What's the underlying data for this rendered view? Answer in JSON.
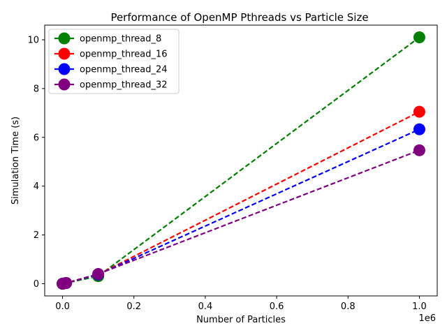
{
  "chart_data": {
    "type": "line",
    "title": "Performance of OpenMP Pthreads vs Particle Size",
    "xlabel": "Number of Particles",
    "ylabel": "Simulation Time (s)",
    "x_offset_label": "1e6",
    "x_scale": 1000000,
    "xlim": [
      -50000,
      1050000
    ],
    "ylim": [
      -0.5,
      10.6
    ],
    "xticks": [
      0,
      200000,
      400000,
      600000,
      800000,
      1000000
    ],
    "xtick_labels": [
      "0.0",
      "0.2",
      "0.4",
      "0.6",
      "0.8",
      "1.0"
    ],
    "yticks": [
      0,
      2,
      4,
      6,
      8,
      10
    ],
    "ytick_labels": [
      "0",
      "2",
      "4",
      "6",
      "8",
      "10"
    ],
    "grid": false,
    "legend_position": "upper-left",
    "x": [
      100,
      1000,
      10000,
      100000,
      1000000
    ],
    "series": [
      {
        "name": "openmp_thread_8",
        "color": "#008000",
        "values": [
          0.0,
          0.003,
          0.03,
          0.31,
          10.1
        ]
      },
      {
        "name": "openmp_thread_16",
        "color": "#ff0000",
        "values": [
          0.0,
          0.003,
          0.03,
          0.38,
          7.05
        ]
      },
      {
        "name": "openmp_thread_24",
        "color": "#0000ff",
        "values": [
          0.0,
          0.003,
          0.03,
          0.38,
          6.33
        ]
      },
      {
        "name": "openmp_thread_32",
        "color": "#800080",
        "values": [
          0.0,
          0.003,
          0.03,
          0.4,
          5.47
        ]
      }
    ]
  }
}
